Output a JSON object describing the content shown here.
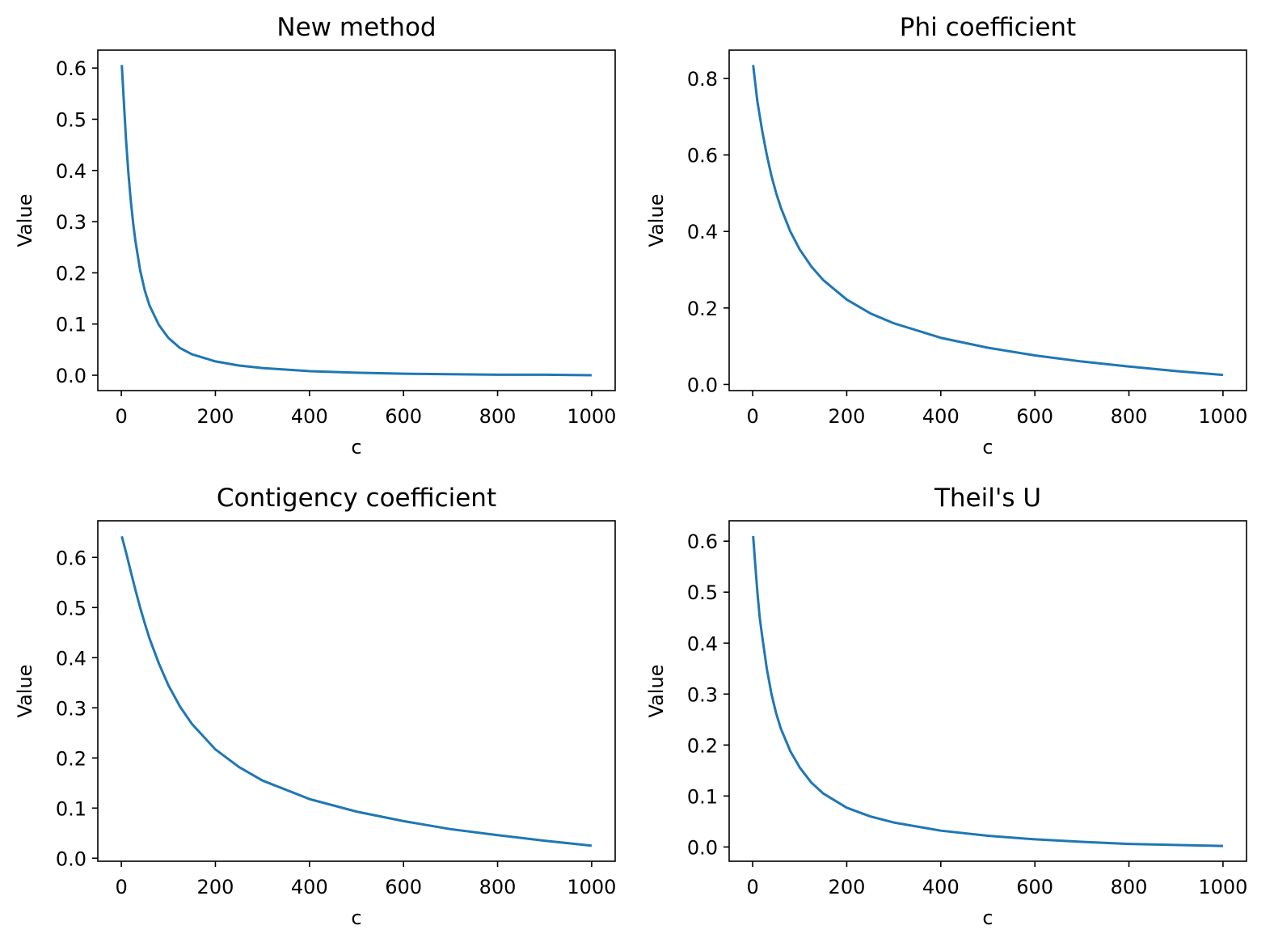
{
  "chart_data": [
    {
      "type": "line",
      "title": "New method",
      "xlabel": "c",
      "ylabel": "Value",
      "xlim": [
        -50,
        1050
      ],
      "ylim": [
        -0.03,
        0.635
      ],
      "xticks": [
        0,
        200,
        400,
        600,
        800,
        1000
      ],
      "xtick_labels": [
        "0",
        "200",
        "400",
        "600",
        "800",
        "1000"
      ],
      "yticks": [
        0.0,
        0.1,
        0.2,
        0.3,
        0.4,
        0.5,
        0.6
      ],
      "ytick_labels": [
        "0.0",
        "0.1",
        "0.2",
        "0.3",
        "0.4",
        "0.5",
        "0.6"
      ],
      "grid": false,
      "series": [
        {
          "color": "#1f77b4",
          "x": [
            1,
            5,
            10,
            15,
            20,
            25,
            30,
            40,
            50,
            60,
            80,
            100,
            125,
            150,
            200,
            250,
            300,
            400,
            500,
            600,
            700,
            800,
            900,
            1000
          ],
          "y": [
            0.606,
            0.54,
            0.46,
            0.395,
            0.342,
            0.298,
            0.262,
            0.205,
            0.165,
            0.136,
            0.098,
            0.073,
            0.053,
            0.041,
            0.027,
            0.019,
            0.014,
            0.008,
            0.005,
            0.003,
            0.002,
            0.001,
            0.001,
            0.0
          ]
        }
      ]
    },
    {
      "type": "line",
      "title": "Phi coefficient",
      "xlabel": "c",
      "ylabel": "Value",
      "xlim": [
        -50,
        1050
      ],
      "ylim": [
        -0.016,
        0.874
      ],
      "xticks": [
        0,
        200,
        400,
        600,
        800,
        1000
      ],
      "xtick_labels": [
        "0",
        "200",
        "400",
        "600",
        "800",
        "1000"
      ],
      "yticks": [
        0.0,
        0.2,
        0.4,
        0.6,
        0.8
      ],
      "ytick_labels": [
        "0.0",
        "0.2",
        "0.4",
        "0.6",
        "0.8"
      ],
      "grid": false,
      "series": [
        {
          "color": "#1f77b4",
          "x": [
            1,
            10,
            20,
            30,
            40,
            50,
            60,
            80,
            100,
            125,
            150,
            200,
            250,
            300,
            400,
            500,
            600,
            700,
            800,
            900,
            1000
          ],
          "y": [
            0.835,
            0.74,
            0.665,
            0.6,
            0.545,
            0.5,
            0.462,
            0.4,
            0.353,
            0.308,
            0.273,
            0.222,
            0.186,
            0.16,
            0.122,
            0.096,
            0.076,
            0.06,
            0.047,
            0.035,
            0.025
          ]
        }
      ]
    },
    {
      "type": "line",
      "title": "Contigency coefficient",
      "xlabel": "c",
      "ylabel": "Value",
      "xlim": [
        -50,
        1050
      ],
      "ylim": [
        -0.006,
        0.673
      ],
      "xticks": [
        0,
        200,
        400,
        600,
        800,
        1000
      ],
      "xtick_labels": [
        "0",
        "200",
        "400",
        "600",
        "800",
        "1000"
      ],
      "yticks": [
        0.0,
        0.1,
        0.2,
        0.3,
        0.4,
        0.5,
        0.6
      ],
      "ytick_labels": [
        "0.0",
        "0.1",
        "0.2",
        "0.3",
        "0.4",
        "0.5",
        "0.6"
      ],
      "grid": false,
      "series": [
        {
          "color": "#1f77b4",
          "x": [
            1,
            10,
            20,
            30,
            40,
            50,
            60,
            80,
            100,
            125,
            150,
            200,
            250,
            300,
            400,
            500,
            600,
            700,
            800,
            900,
            1000
          ],
          "y": [
            0.642,
            0.61,
            0.572,
            0.535,
            0.5,
            0.468,
            0.438,
            0.388,
            0.345,
            0.302,
            0.268,
            0.217,
            0.182,
            0.155,
            0.118,
            0.093,
            0.074,
            0.058,
            0.046,
            0.035,
            0.025
          ]
        }
      ]
    },
    {
      "type": "line",
      "title": "Theil's U",
      "xlabel": "c",
      "ylabel": "Value",
      "xlim": [
        -50,
        1050
      ],
      "ylim": [
        -0.028,
        0.64
      ],
      "xticks": [
        0,
        200,
        400,
        600,
        800,
        1000
      ],
      "xtick_labels": [
        "0",
        "200",
        "400",
        "600",
        "800",
        "1000"
      ],
      "yticks": [
        0.0,
        0.1,
        0.2,
        0.3,
        0.4,
        0.5,
        0.6
      ],
      "ytick_labels": [
        "0.0",
        "0.1",
        "0.2",
        "0.3",
        "0.4",
        "0.5",
        "0.6"
      ],
      "grid": false,
      "series": [
        {
          "color": "#1f77b4",
          "x": [
            1,
            5,
            10,
            15,
            20,
            30,
            40,
            50,
            60,
            80,
            100,
            125,
            150,
            200,
            250,
            300,
            400,
            500,
            600,
            700,
            800,
            900,
            1000
          ],
          "y": [
            0.61,
            0.56,
            0.5,
            0.45,
            0.415,
            0.35,
            0.3,
            0.262,
            0.232,
            0.188,
            0.156,
            0.126,
            0.105,
            0.077,
            0.06,
            0.048,
            0.032,
            0.022,
            0.015,
            0.01,
            0.006,
            0.004,
            0.002
          ]
        }
      ]
    }
  ]
}
